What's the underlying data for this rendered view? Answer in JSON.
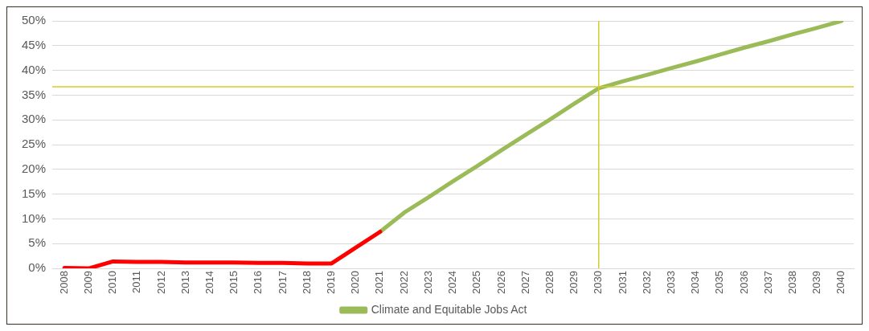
{
  "chart_data": {
    "type": "line",
    "categories": [
      "2008",
      "2009",
      "2010",
      "2011",
      "2012",
      "2013",
      "2014",
      "2015",
      "2016",
      "2017",
      "2018",
      "2019",
      "2020",
      "2021",
      "2022",
      "2023",
      "2024",
      "2025",
      "2026",
      "2027",
      "2028",
      "2029",
      "2030",
      "2031",
      "2032",
      "2033",
      "2034",
      "2035",
      "2036",
      "2037",
      "2038",
      "2039",
      "2040"
    ],
    "series": [
      {
        "color": "#ff0000",
        "values": [
          0.1,
          0,
          1.4,
          1.3,
          1.3,
          1.2,
          1.2,
          1.2,
          1.1,
          1.1,
          1.0,
          1.0,
          4.2,
          7.4,
          null,
          null,
          null,
          null,
          null,
          null,
          null,
          null,
          null,
          null,
          null,
          null,
          null,
          null,
          null,
          null,
          null,
          null,
          null
        ]
      },
      {
        "name": "Climate and Equitable Jobs Act",
        "color": "#9bbb59",
        "values": [
          null,
          null,
          null,
          null,
          null,
          null,
          null,
          null,
          null,
          null,
          null,
          null,
          null,
          7.4,
          11.3,
          14.4,
          17.6,
          20.7,
          23.9,
          27.0,
          30.1,
          33.3,
          36.4,
          37.8,
          39.1,
          40.5,
          41.8,
          43.2,
          44.6,
          45.9,
          47.3,
          48.6,
          50.0
        ]
      }
    ],
    "ylim": [
      0,
      50
    ],
    "yticks": [
      {
        "value": 0,
        "label": "0%"
      },
      {
        "value": 5,
        "label": "5%"
      },
      {
        "value": 10,
        "label": "10%"
      },
      {
        "value": 15,
        "label": "15%"
      },
      {
        "value": 20,
        "label": "20%"
      },
      {
        "value": 25,
        "label": "25%"
      },
      {
        "value": 30,
        "label": "30%"
      },
      {
        "value": 35,
        "label": "35%"
      },
      {
        "value": 40,
        "label": "40%"
      },
      {
        "value": 45,
        "label": "45%"
      },
      {
        "value": 50,
        "label": "50%"
      }
    ],
    "ref_lines": [
      {
        "axis": "y",
        "value": 36.7,
        "color": "#d4cc2a"
      },
      {
        "axis": "x",
        "value": "2030",
        "color": "#d4cc2a"
      }
    ],
    "grid": "y",
    "legend": "bottom",
    "marker": "none",
    "line_style": "solid"
  }
}
